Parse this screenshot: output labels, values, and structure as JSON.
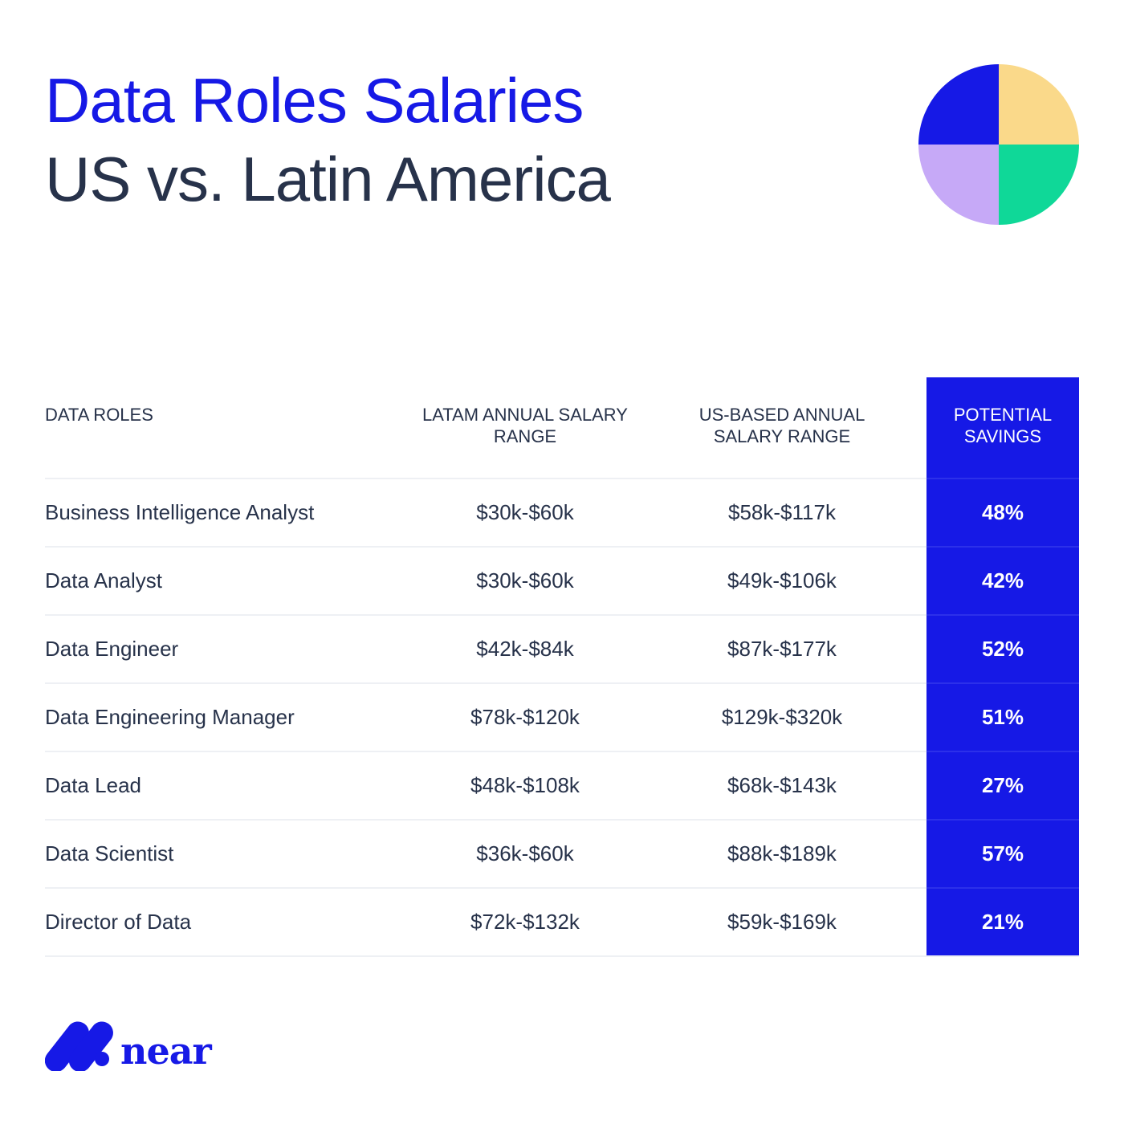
{
  "title": {
    "line1": "Data Roles Salaries",
    "line2": "US vs. Latin America"
  },
  "colors": {
    "brand_blue": "#1619e6",
    "yellow": "#fad98a",
    "lavender": "#c6a9f7",
    "green": "#0fd898",
    "text": "#27324a"
  },
  "table": {
    "headers": [
      "DATA ROLES",
      "LATAM ANNUAL SALARY RANGE",
      "US-BASED ANNUAL SALARY RANGE",
      "POTENTIAL SAVINGS"
    ],
    "rows": [
      [
        "Business Intelligence Analyst",
        "$30k-$60k",
        "$58k-$117k",
        "48%"
      ],
      [
        "Data Analyst",
        "$30k-$60k",
        "$49k-$106k",
        "42%"
      ],
      [
        "Data Engineer",
        "$42k-$84k",
        "$87k-$177k",
        "52%"
      ],
      [
        "Data Engineering Manager",
        "$78k-$120k",
        "$129k-$320k",
        "51%"
      ],
      [
        "Data Lead",
        "$48k-$108k",
        "$68k-$143k",
        "27%"
      ],
      [
        "Data Scientist",
        "$36k-$60k",
        "$88k-$189k",
        "57%"
      ],
      [
        "Director of Data",
        "$72k-$132k",
        "$59k-$169k",
        "21%"
      ]
    ]
  },
  "logo": {
    "text": "near"
  }
}
